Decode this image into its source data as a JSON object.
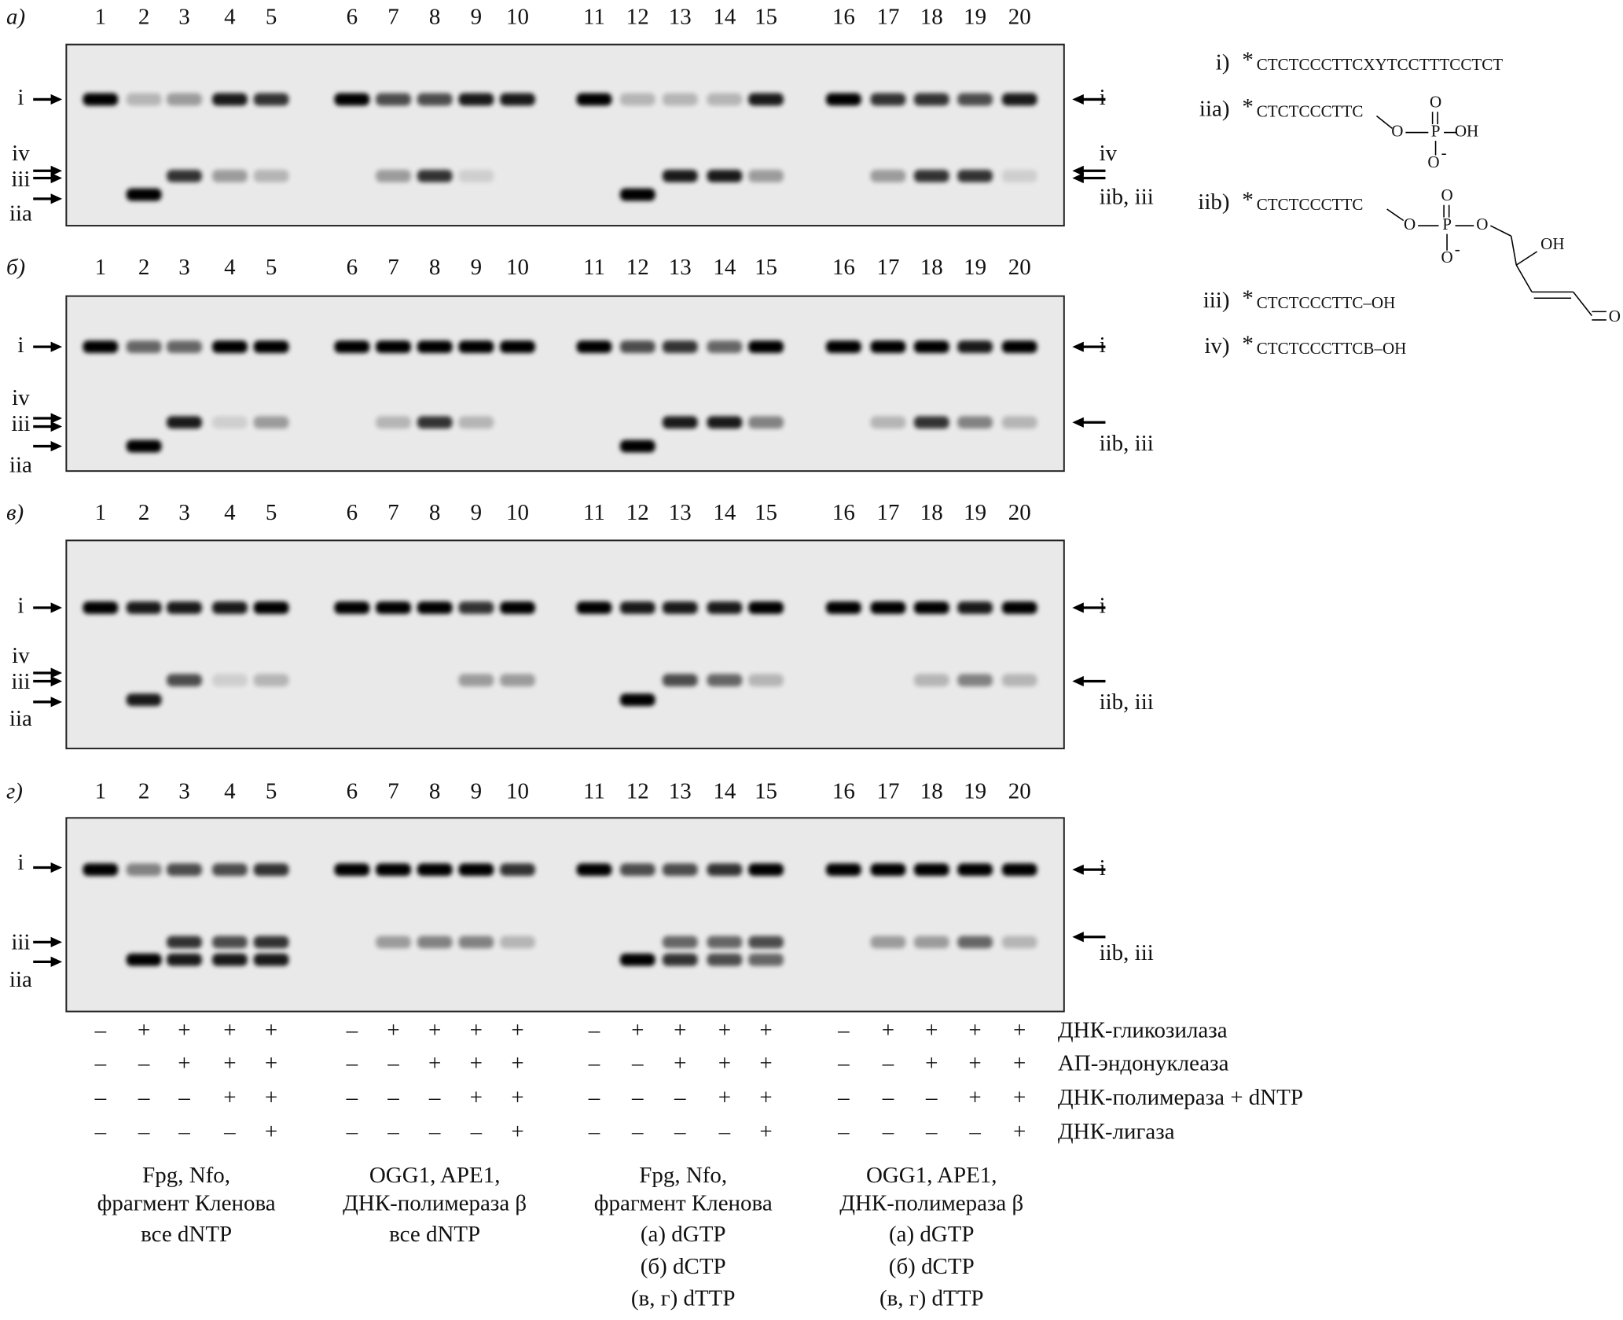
{
  "lanes": [
    "1",
    "2",
    "3",
    "4",
    "5",
    "6",
    "7",
    "8",
    "9",
    "10",
    "11",
    "12",
    "13",
    "14",
    "15",
    "16",
    "17",
    "18",
    "19",
    "20"
  ],
  "panels": [
    {
      "label": "а)",
      "left": [
        "i",
        "iv",
        "iii",
        "iia"
      ],
      "right": [
        "i",
        "iv",
        "iib, iii"
      ]
    },
    {
      "label": "б)",
      "left": [
        "i",
        "iv",
        "iii",
        "iia"
      ],
      "right": [
        "i",
        "iib, iii"
      ]
    },
    {
      "label": "в)",
      "left": [
        "i",
        "iv",
        "iii",
        "iia"
      ],
      "right": [
        "i",
        "iib, iii"
      ]
    },
    {
      "label": "г)",
      "left": [
        "i",
        "iii",
        "iia"
      ],
      "right": [
        "i",
        "iib, iii"
      ]
    }
  ],
  "legend": [
    {
      "id": "i)",
      "star": "*",
      "seq": "CTCTCCCTTCXYTCCTTTCCTCT",
      "atoms": []
    },
    {
      "id": "iia)",
      "star": "*",
      "seq": "CTCTCCCTTC",
      "atoms": [
        "O",
        "P",
        "OH",
        "O",
        "O",
        "-"
      ]
    },
    {
      "id": "iib)",
      "star": "*",
      "seq": "CTCTCCCTTC",
      "atoms": [
        "O",
        "P",
        "O",
        "O",
        "O",
        "-",
        "OH",
        "O"
      ]
    },
    {
      "id": "iii)",
      "star": "*",
      "seq": "CTCTCCCTTC–OH",
      "atoms": []
    },
    {
      "id": "iv)",
      "star": "*",
      "seq": "CTCTCCCTTCB–OH",
      "atoms": []
    }
  ],
  "conditions": [
    {
      "label": "ДНК-гликозилаза",
      "signs": [
        "–",
        "+",
        "+",
        "+",
        "+"
      ]
    },
    {
      "label": "АП-эндонуклеаза",
      "signs": [
        "–",
        "–",
        "+",
        "+",
        "+"
      ]
    },
    {
      "label": "ДНК-полимераза + dNTP",
      "signs": [
        "–",
        "–",
        "–",
        "+",
        "+"
      ]
    },
    {
      "label": "ДНК-лигаза",
      "signs": [
        "–",
        "–",
        "–",
        "–",
        "+"
      ]
    }
  ],
  "groups": [
    [
      "Fpg, Nfo,",
      "фрагмент Кленова",
      "все dNTP"
    ],
    [
      "OGG1, APE1,",
      "ДНК-полимераза β",
      "все dNTP"
    ],
    [
      "Fpg, Nfo,",
      "фрагмент Кленова",
      "(а) dGTP",
      "(б) dCTP",
      "(в, г) dTTP"
    ],
    [
      "OGG1, APE1,",
      "ДНК-полимераза β",
      "(а) dGTP",
      "(б) dCTP",
      "(в, г) dTTP"
    ]
  ]
}
